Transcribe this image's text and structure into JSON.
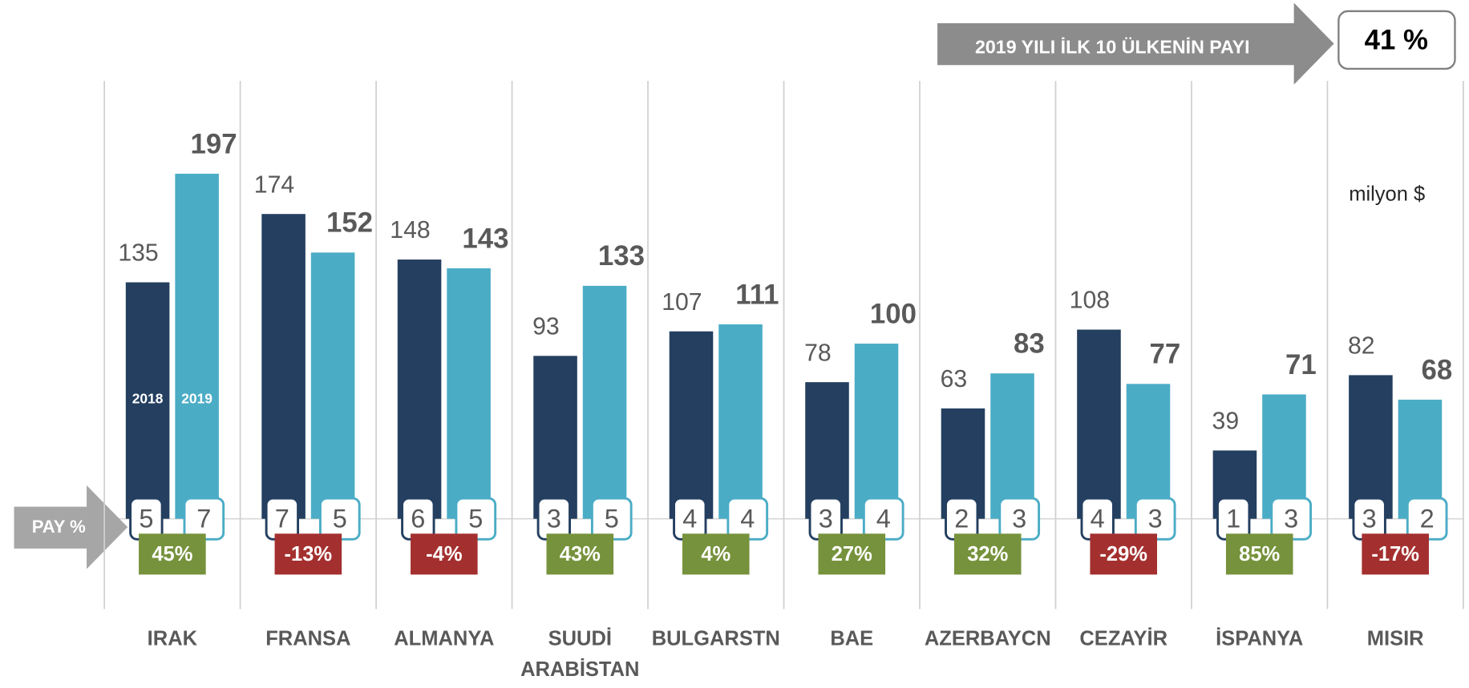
{
  "chart_data": {
    "type": "bar",
    "header": "2019 YILI İLK 10 ÜLKENİN PAYI",
    "header_value": "41 %",
    "share_label": "PAY %",
    "unit": "milyon $",
    "categories": [
      "IRAK",
      "FRANSA",
      "ALMANYA",
      "SUUDİ ARABİSTAN",
      "BULGARSTN",
      "BAE",
      "AZERBAYCN",
      "CEZAYİR",
      "İSPANYA",
      "MISIR"
    ],
    "series": [
      {
        "name": "2018",
        "color": "#243f60",
        "values": [
          135,
          174,
          148,
          93,
          107,
          78,
          63,
          108,
          39,
          82
        ],
        "shares": [
          5,
          7,
          6,
          3,
          4,
          3,
          2,
          4,
          1,
          3
        ]
      },
      {
        "name": "2019",
        "color": "#4bacc6",
        "values": [
          197,
          152,
          143,
          133,
          111,
          100,
          83,
          77,
          71,
          68
        ],
        "shares": [
          7,
          5,
          5,
          5,
          4,
          4,
          3,
          3,
          3,
          2
        ]
      }
    ],
    "change": {
      "values": [
        45,
        -13,
        -4,
        43,
        4,
        27,
        32,
        -29,
        85,
        -17
      ],
      "value_labels": [
        "45%",
        "-13%",
        "-4%",
        "43%",
        "4%",
        "27%",
        "32%",
        "-29%",
        "85%",
        "-17%"
      ],
      "positive_color": "#76923c",
      "negative_color": "#a3302f"
    },
    "ylim": [
      0,
      250
    ]
  }
}
